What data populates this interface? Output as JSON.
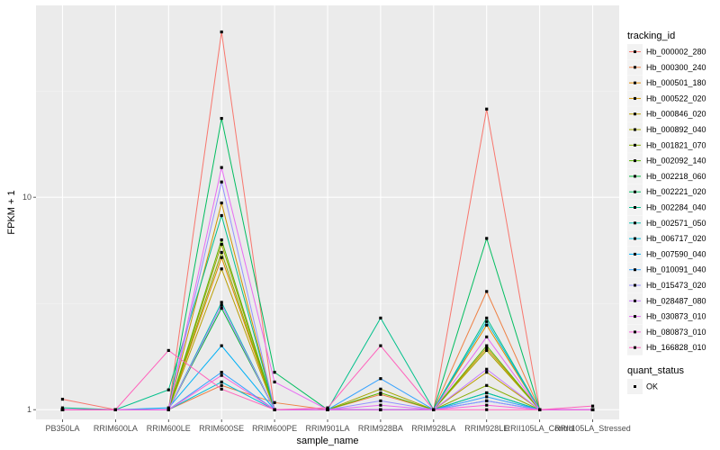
{
  "chart_data": {
    "type": "line",
    "title": "",
    "xlabel": "sample_name",
    "ylabel": "FPKM + 1",
    "y_scale": "log10",
    "ylim": [
      0.9,
      80
    ],
    "yticks": [
      1,
      10
    ],
    "y_tick_labels": [
      "1",
      "10"
    ],
    "grid": true,
    "legend_position": "right",
    "panel_background": "#ebebeb",
    "categories": [
      "PB350LA",
      "RRIM600LA",
      "RRIM600LE",
      "RRIM600SE",
      "RRIM600PE",
      "RRIM901LA",
      "RRIM928BA",
      "RRIM928LA",
      "RRIM928LE",
      "RRII105LA_Control",
      "RRII105LA_Stressed"
    ],
    "legend_title": "tracking_id",
    "series": [
      {
        "name": "Hb_000002_280",
        "color": "#F8766D",
        "values": [
          1.12,
          1.0,
          1.0,
          60.0,
          1.0,
          1.0,
          1.0,
          1.0,
          26.0,
          1.0,
          1.0
        ]
      },
      {
        "name": "Hb_000300_240",
        "color": "#EE8044",
        "values": [
          1.0,
          1.0,
          1.0,
          1.3,
          1.08,
          1.0,
          1.18,
          1.0,
          3.6,
          1.0,
          1.0
        ]
      },
      {
        "name": "Hb_000501_180",
        "color": "#E18A00",
        "values": [
          1.0,
          1.0,
          1.0,
          5.2,
          1.0,
          1.0,
          1.0,
          1.0,
          2.5,
          1.0,
          1.0
        ]
      },
      {
        "name": "Hb_000522_020",
        "color": "#CF9400",
        "values": [
          1.0,
          1.0,
          1.0,
          9.4,
          1.0,
          1.0,
          1.0,
          1.0,
          1.95,
          1.0,
          1.0
        ]
      },
      {
        "name": "Hb_000846_020",
        "color": "#BA9E00",
        "values": [
          1.0,
          1.0,
          1.0,
          4.6,
          1.0,
          1.0,
          1.0,
          1.0,
          1.5,
          1.0,
          1.0
        ]
      },
      {
        "name": "Hb_000892_040",
        "color": "#A3A500",
        "values": [
          1.0,
          1.0,
          1.0,
          6.0,
          1.0,
          1.0,
          1.25,
          1.0,
          1.9,
          1.0,
          1.0
        ]
      },
      {
        "name": "Hb_001821_070",
        "color": "#86AC00",
        "values": [
          1.0,
          1.0,
          1.0,
          5.5,
          1.0,
          1.0,
          1.0,
          1.0,
          1.3,
          1.0,
          1.0
        ]
      },
      {
        "name": "Hb_002092_140",
        "color": "#5BB300",
        "values": [
          1.0,
          1.0,
          1.0,
          6.3,
          1.0,
          1.0,
          1.2,
          1.0,
          2.0,
          1.0,
          1.0
        ]
      },
      {
        "name": "Hb_002218_060",
        "color": "#00BA38",
        "values": [
          1.0,
          1.0,
          1.0,
          3.0,
          1.0,
          1.0,
          1.0,
          1.0,
          1.2,
          1.0,
          1.0
        ]
      },
      {
        "name": "Hb_002221_020",
        "color": "#00BD5F",
        "values": [
          1.0,
          1.0,
          1.0,
          23.5,
          1.5,
          1.0,
          1.0,
          1.0,
          6.4,
          1.0,
          1.0
        ]
      },
      {
        "name": "Hb_002284_040",
        "color": "#00C08B",
        "values": [
          1.02,
          1.0,
          1.24,
          8.2,
          1.0,
          1.0,
          2.7,
          1.0,
          2.7,
          1.0,
          1.0
        ]
      },
      {
        "name": "Hb_002571_050",
        "color": "#00C0AF",
        "values": [
          1.0,
          1.0,
          1.0,
          3.2,
          1.0,
          1.0,
          1.0,
          1.0,
          1.2,
          1.0,
          1.0
        ]
      },
      {
        "name": "Hb_006717_020",
        "color": "#00BCD8",
        "values": [
          1.0,
          1.0,
          1.0,
          1.35,
          1.0,
          1.0,
          1.0,
          1.0,
          2.6,
          1.0,
          1.0
        ]
      },
      {
        "name": "Hb_007590_040",
        "color": "#00B0F6",
        "values": [
          1.0,
          1.0,
          1.02,
          2.0,
          1.0,
          1.0,
          1.0,
          1.0,
          1.1,
          1.0,
          1.0
        ]
      },
      {
        "name": "Hb_010091_040",
        "color": "#35A2FF",
        "values": [
          1.0,
          1.0,
          1.0,
          1.5,
          1.0,
          1.0,
          1.4,
          1.0,
          1.15,
          1.0,
          1.0
        ]
      },
      {
        "name": "Hb_015473_020",
        "color": "#9590FF",
        "values": [
          1.0,
          1.0,
          1.0,
          11.8,
          1.0,
          1.0,
          1.1,
          1.0,
          1.1,
          1.0,
          1.0
        ]
      },
      {
        "name": "Hb_028487_080",
        "color": "#C77CFF",
        "values": [
          1.0,
          1.0,
          1.0,
          3.1,
          1.0,
          1.0,
          1.0,
          1.0,
          1.55,
          1.0,
          1.0
        ]
      },
      {
        "name": "Hb_030873_010",
        "color": "#E76BF3",
        "values": [
          1.0,
          1.0,
          1.0,
          13.8,
          1.35,
          1.0,
          1.05,
          1.0,
          2.2,
          1.0,
          1.0
        ]
      },
      {
        "name": "Hb_080873_010",
        "color": "#FA62DB",
        "values": [
          1.0,
          1.0,
          1.0,
          1.45,
          1.0,
          1.0,
          1.0,
          1.0,
          1.05,
          1.0,
          1.0
        ]
      },
      {
        "name": "Hb_166828_010",
        "color": "#FF62BC",
        "values": [
          1.0,
          1.0,
          1.9,
          1.25,
          1.0,
          1.02,
          2.0,
          1.0,
          1.0,
          1.0,
          1.04
        ]
      }
    ],
    "shape_legend": {
      "title": "quant_status",
      "items": [
        {
          "label": "OK",
          "shape": "square",
          "color": "#000000"
        }
      ]
    }
  }
}
